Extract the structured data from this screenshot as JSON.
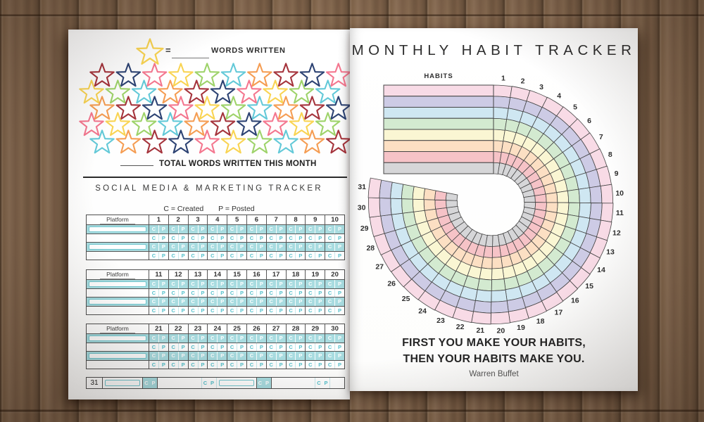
{
  "left_page": {
    "header": {
      "equals_sign": "=",
      "words_written_label": "WORDS WRITTEN"
    },
    "stars": {
      "palette": [
        "#a5343c",
        "#2d4373",
        "#f4778f",
        "#f9d453",
        "#9ed36a",
        "#63c9d8",
        "#f59d53"
      ],
      "palette_names": [
        "dark-red",
        "navy",
        "pink",
        "yellow",
        "green",
        "teal",
        "orange"
      ],
      "legend_star_color": "#f9d453",
      "rows": [
        {
          "count": 10,
          "start_color_index": 0
        },
        {
          "count": 10,
          "start_color_index": 3
        },
        {
          "count": 10,
          "start_color_index": 6
        },
        {
          "count": 10,
          "start_color_index": 2
        },
        {
          "count": 10,
          "start_color_index": 5
        }
      ]
    },
    "total_label": "TOTAL WORDS WRITTEN THIS MONTH",
    "tracker": {
      "title": "SOCIAL MEDIA & MARKETING TRACKER",
      "legend_created": "C = Created",
      "legend_posted": "P = Posted",
      "platform_label": "Platform",
      "created_letter": "C",
      "posted_letter": "P",
      "rows_per_table": 4,
      "tables": [
        {
          "days": [
            "1",
            "2",
            "3",
            "4",
            "5",
            "6",
            "7",
            "8",
            "9",
            "10"
          ]
        },
        {
          "days": [
            "11",
            "12",
            "13",
            "14",
            "15",
            "16",
            "17",
            "18",
            "19",
            "20"
          ]
        },
        {
          "days": [
            "21",
            "22",
            "23",
            "24",
            "25",
            "26",
            "27",
            "28",
            "29",
            "30"
          ]
        }
      ],
      "day_31": "31",
      "colors": {
        "teal_bg": "#a8dce0",
        "teal_text": "#54c1cc",
        "box_border": "#74c8d0"
      }
    }
  },
  "right_page": {
    "title": "MONTHLY HABIT TRACKER",
    "habits_label": "HABITS",
    "quote": {
      "line1": "FIRST YOU MAKE YOUR HABITS,",
      "line2": "THEN YOUR HABITS MAKE YOU.",
      "author": "Warren Buffet"
    }
  },
  "chart_data": {
    "type": "radial-habit-tracker",
    "title": "MONTHLY HABIT TRACKER",
    "day_labels": [
      "1",
      "2",
      "3",
      "4",
      "5",
      "6",
      "7",
      "8",
      "9",
      "10",
      "11",
      "12",
      "13",
      "14",
      "15",
      "16",
      "17",
      "18",
      "19",
      "20",
      "21",
      "22",
      "23",
      "24",
      "25",
      "26",
      "27",
      "28",
      "29",
      "30",
      "31"
    ],
    "habit_rings": 8,
    "ring_colors_outer_to_inner": [
      "#f8dbe6",
      "#cdcbe5",
      "#cfe7f2",
      "#d3ead0",
      "#faf6d3",
      "#fcdfc3",
      "#f6c3c7",
      "#d6d6d8"
    ],
    "segment_stroke": "#454545",
    "start_angle_deg": 0,
    "end_angle_deg": 281,
    "values": "blank (tracker unfilled)",
    "legend_position": "upper-left horizontal bars labeled HABITS"
  }
}
